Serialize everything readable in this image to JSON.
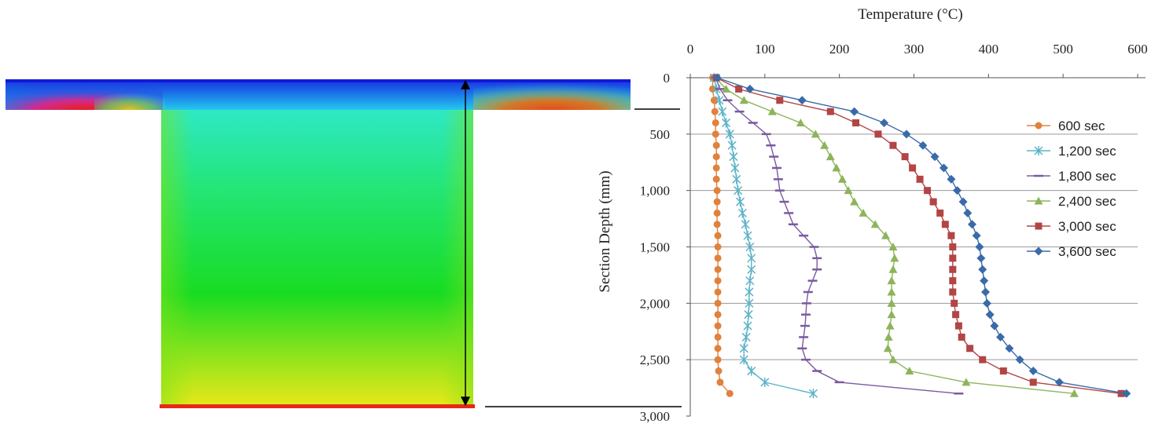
{
  "chart_data": {
    "type": "line",
    "title": "",
    "xlabel": "Temperature (°C)",
    "ylabel": "Section Depth (mm)",
    "xlim": [
      0,
      600
    ],
    "ylim": [
      3000,
      0
    ],
    "y_inverted": true,
    "x_axis_position": "top",
    "xticks": [
      "0",
      "100",
      "200",
      "300",
      "400",
      "500",
      "600"
    ],
    "yticks": [
      "0",
      "500",
      "1,000",
      "1,500",
      "2,000",
      "2,500",
      "3,000"
    ],
    "grid": "horizontal",
    "legend_position": "right",
    "y": [
      0,
      100,
      200,
      300,
      400,
      500,
      600,
      700,
      800,
      900,
      1000,
      1100,
      1200,
      1300,
      1400,
      1500,
      1600,
      1700,
      1800,
      1900,
      2000,
      2100,
      2200,
      2300,
      2400,
      2500,
      2600,
      2700,
      2800
    ],
    "series": [
      {
        "name": "600 sec",
        "color": "#e0823d",
        "marker": "circle",
        "x": [
          30,
          30,
          32,
          33,
          34,
          34,
          35,
          35,
          35,
          35,
          36,
          36,
          36,
          36,
          37,
          37,
          37,
          37,
          37,
          37,
          37,
          37,
          37,
          37,
          37,
          37,
          38,
          40,
          53
        ]
      },
      {
        "name": "1,200 sec",
        "color": "#5bb3c8",
        "marker": "star",
        "x": [
          32,
          35,
          39,
          43,
          48,
          53,
          56,
          58,
          60,
          62,
          64,
          67,
          70,
          74,
          77,
          80,
          82,
          82,
          80,
          79,
          79,
          78,
          77,
          75,
          72,
          72,
          82,
          100,
          165
        ]
      },
      {
        "name": "1,800 sec",
        "color": "#7a5aa0",
        "marker": "dash",
        "x": [
          34,
          40,
          50,
          66,
          84,
          102,
          108,
          112,
          116,
          118,
          120,
          126,
          132,
          138,
          152,
          166,
          170,
          170,
          164,
          158,
          156,
          155,
          154,
          152,
          150,
          155,
          170,
          200,
          360
        ]
      },
      {
        "name": "2,400 sec",
        "color": "#8db45a",
        "marker": "triangle",
        "x": [
          34,
          48,
          72,
          110,
          148,
          168,
          180,
          188,
          196,
          204,
          212,
          220,
          232,
          248,
          262,
          272,
          274,
          272,
          270,
          270,
          270,
          270,
          268,
          266,
          265,
          272,
          294,
          370,
          515
        ]
      },
      {
        "name": "3,000 sec",
        "color": "#b24545",
        "marker": "square",
        "x": [
          35,
          65,
          120,
          188,
          222,
          252,
          272,
          288,
          298,
          308,
          318,
          326,
          335,
          342,
          350,
          352,
          352,
          352,
          352,
          352,
          354,
          356,
          360,
          364,
          375,
          392,
          420,
          460,
          578
        ]
      },
      {
        "name": "3,600 sec",
        "color": "#3a6aa8",
        "marker": "diamond",
        "x": [
          36,
          80,
          150,
          220,
          260,
          290,
          312,
          328,
          340,
          350,
          358,
          366,
          372,
          378,
          384,
          388,
          390,
          392,
          394,
          396,
          398,
          402,
          408,
          416,
          428,
          442,
          460,
          495,
          585
        ]
      }
    ]
  }
}
